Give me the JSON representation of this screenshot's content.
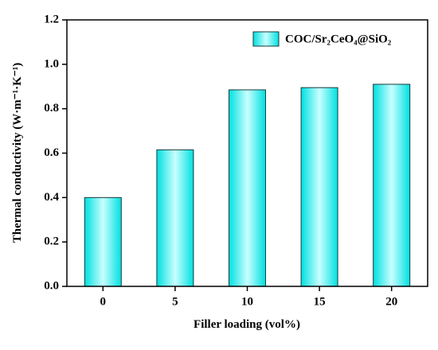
{
  "chart_data": {
    "type": "bar",
    "x_label": "Filler loading (vol%)",
    "y_label": "Thermal conductivity (W·m⁻¹·K⁻¹)",
    "categories": [
      "0",
      "5",
      "10",
      "15",
      "20"
    ],
    "series": [
      {
        "name": "COC/Sr₂CeO₄@SiO₂",
        "color": "#00e0e0",
        "values": [
          0.4,
          0.615,
          0.885,
          0.895,
          0.91
        ]
      }
    ],
    "ylim": [
      0,
      1.2
    ],
    "yticks": [
      {
        "value": 0,
        "label": "0.0"
      },
      0.2,
      0.4,
      0.6,
      0.8,
      {
        "value": 1,
        "label": "1.0"
      },
      1.2
    ],
    "legend": "upper right"
  }
}
